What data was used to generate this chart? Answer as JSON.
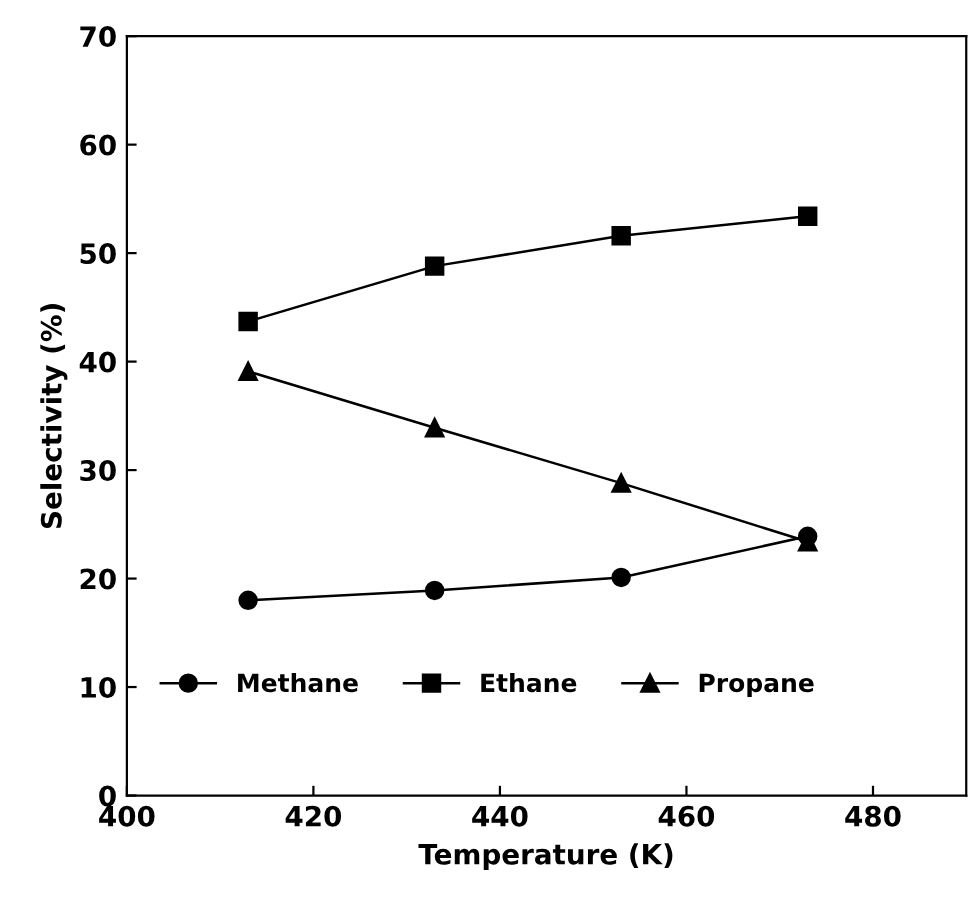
{
  "chart_data": {
    "type": "line",
    "xlabel": "Temperature (K)",
    "ylabel": "Selectivity (%)",
    "x": [
      413,
      433,
      453,
      473
    ],
    "series": [
      {
        "name": "Methane",
        "color": "#000000",
        "marker": "circle",
        "values": [
          18.0,
          18.9,
          20.1,
          23.9
        ]
      },
      {
        "name": "Ethane",
        "color": "#000000",
        "marker": "square",
        "values": [
          43.7,
          48.8,
          51.6,
          53.4
        ]
      },
      {
        "name": "Propane",
        "color": "#000000",
        "marker": "triangle",
        "values": [
          39.1,
          33.9,
          28.8,
          23.4
        ]
      }
    ],
    "xlim": [
      400,
      490
    ],
    "xticks": [
      400,
      420,
      440,
      460,
      480
    ],
    "ylim": [
      0,
      70
    ],
    "yticks": [
      0,
      10,
      20,
      30,
      40,
      50,
      60,
      70
    ],
    "grid": false,
    "legend": "bottom",
    "line_style": "solid"
  }
}
